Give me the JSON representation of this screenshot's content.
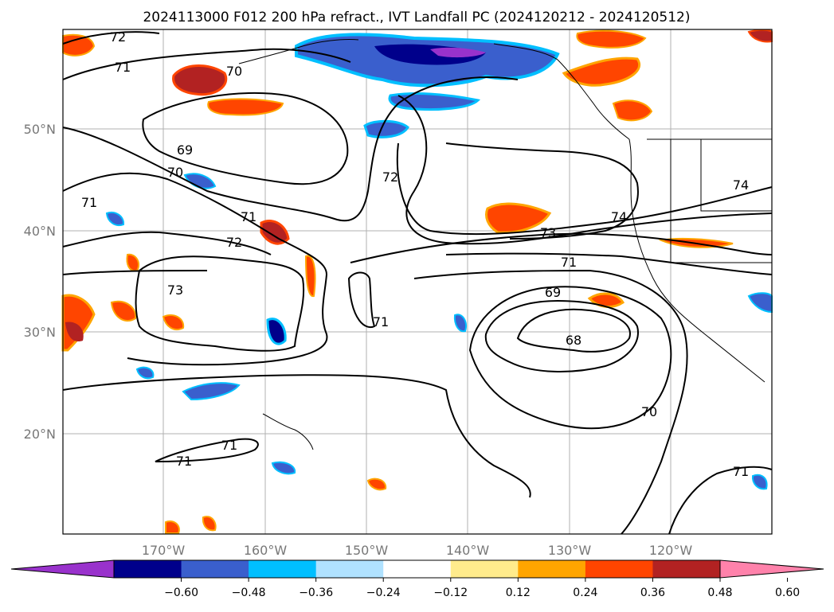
{
  "map": {
    "title": "2024113000 F012 200 hPa refract., IVT Landfall PC (2024120212 - 2024120512)",
    "lat_labels": [
      "50°N",
      "40°N",
      "30°N",
      "20°N"
    ],
    "lon_labels": [
      "170°W",
      "160°W",
      "150°W",
      "140°W",
      "130°W",
      "120°W"
    ],
    "contour_labels": [
      "72",
      "71",
      "70",
      "69",
      "70",
      "71",
      "71",
      "72",
      "73",
      "71",
      "72",
      "74",
      "73",
      "71",
      "69",
      "68",
      "70",
      "71",
      "71",
      "71",
      "74"
    ],
    "colorbar": {
      "ticks": [
        "−0.60",
        "−0.48",
        "−0.36",
        "−0.24",
        "−0.12",
        "0.12",
        "0.24",
        "0.36",
        "0.48",
        "0.60"
      ],
      "colors": [
        "#9932cc",
        "#00008b",
        "#3a5fcd",
        "#00bfff",
        "#b0e2ff",
        "#ffffff",
        "#ffeb8c",
        "#ffa500",
        "#ff4500",
        "#b22222",
        "#ff82ab"
      ]
    }
  }
}
